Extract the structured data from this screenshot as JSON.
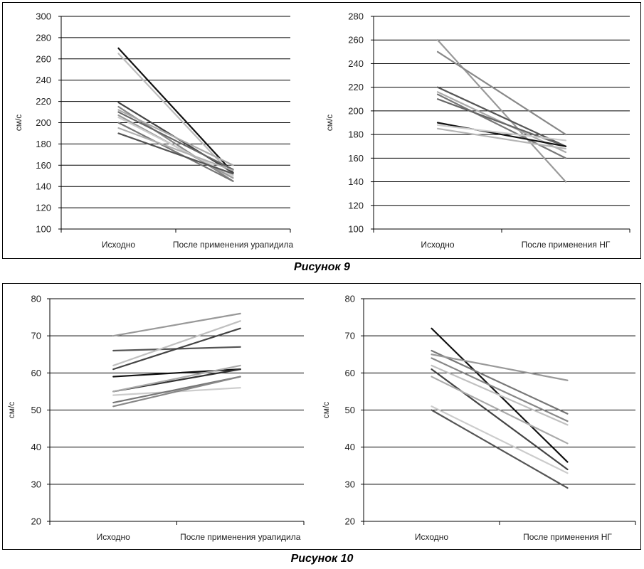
{
  "figures": [
    {
      "caption": "Рисунок 9"
    },
    {
      "caption": "Рисунок 10"
    }
  ],
  "chart_data": [
    {
      "type": "line",
      "title": "",
      "ylabel": "см/с",
      "xlabel": "",
      "categories": [
        "Исходно",
        "После применения урапидила"
      ],
      "ylim": [
        100,
        300
      ],
      "yticks": [
        100,
        120,
        140,
        160,
        180,
        200,
        220,
        240,
        260,
        280,
        300
      ],
      "grid": true,
      "series": [
        {
          "values": [
            270,
            153
          ],
          "color": "#111111"
        },
        {
          "values": [
            265,
            150
          ],
          "color": "#bdbdbd"
        },
        {
          "values": [
            219,
            153
          ],
          "color": "#444444"
        },
        {
          "values": [
            215,
            145
          ],
          "color": "#888888"
        },
        {
          "values": [
            212,
            160
          ],
          "color": "#aaaaaa"
        },
        {
          "values": [
            210,
            156
          ],
          "color": "#666666"
        },
        {
          "values": [
            207,
            148
          ],
          "color": "#999999"
        },
        {
          "values": [
            205,
            150
          ],
          "color": "#cccccc"
        },
        {
          "values": [
            200,
            145
          ],
          "color": "#777777"
        },
        {
          "values": [
            195,
            155
          ],
          "color": "#b0b0b0"
        },
        {
          "values": [
            190,
            152
          ],
          "color": "#555555"
        }
      ]
    },
    {
      "type": "line",
      "title": "",
      "ylabel": "см/с",
      "xlabel": "",
      "categories": [
        "Исходно",
        "После применения НГ"
      ],
      "ylim": [
        100,
        280
      ],
      "yticks": [
        100,
        120,
        140,
        160,
        180,
        200,
        220,
        240,
        260,
        280
      ],
      "grid": true,
      "series": [
        {
          "values": [
            260,
            140
          ],
          "color": "#999999"
        },
        {
          "values": [
            250,
            180
          ],
          "color": "#888888"
        },
        {
          "values": [
            220,
            170
          ],
          "color": "#555555"
        },
        {
          "values": [
            216,
            165
          ],
          "color": "#aaaaaa"
        },
        {
          "values": [
            214,
            160
          ],
          "color": "#777777"
        },
        {
          "values": [
            210,
            170
          ],
          "color": "#666666"
        },
        {
          "values": [
            190,
            170
          ],
          "color": "#111111"
        },
        {
          "values": [
            188,
            175
          ],
          "color": "#cccccc"
        },
        {
          "values": [
            185,
            168
          ],
          "color": "#b5b5b5"
        }
      ]
    },
    {
      "type": "line",
      "title": "",
      "ylabel": "см/с",
      "xlabel": "",
      "categories": [
        "Исходно",
        "После применения урапидила"
      ],
      "ylim": [
        20,
        80
      ],
      "yticks": [
        20,
        30,
        40,
        50,
        60,
        70,
        80
      ],
      "grid": true,
      "series": [
        {
          "values": [
            70,
            76
          ],
          "color": "#999999"
        },
        {
          "values": [
            66,
            67
          ],
          "color": "#555555"
        },
        {
          "values": [
            62,
            74
          ],
          "color": "#c0c0c0"
        },
        {
          "values": [
            61,
            72
          ],
          "color": "#444444"
        },
        {
          "values": [
            59,
            61
          ],
          "color": "#111111"
        },
        {
          "values": [
            55,
            61
          ],
          "color": "#333333"
        },
        {
          "values": [
            55,
            62
          ],
          "color": "#aaaaaa"
        },
        {
          "values": [
            54,
            56
          ],
          "color": "#cccccc"
        },
        {
          "values": [
            52,
            59
          ],
          "color": "#777777"
        },
        {
          "values": [
            51,
            59
          ],
          "color": "#888888"
        }
      ]
    },
    {
      "type": "line",
      "title": "",
      "ylabel": "см/с",
      "xlabel": "",
      "categories": [
        "Исходно",
        "После применения НГ"
      ],
      "ylim": [
        20,
        80
      ],
      "yticks": [
        20,
        30,
        40,
        50,
        60,
        70,
        80
      ],
      "grid": true,
      "series": [
        {
          "values": [
            72,
            36
          ],
          "color": "#111111"
        },
        {
          "values": [
            66,
            49
          ],
          "color": "#777777"
        },
        {
          "values": [
            65,
            58
          ],
          "color": "#999999"
        },
        {
          "values": [
            64,
            47
          ],
          "color": "#888888"
        },
        {
          "values": [
            62,
            46
          ],
          "color": "#c0c0c0"
        },
        {
          "values": [
            61,
            34
          ],
          "color": "#444444"
        },
        {
          "values": [
            59,
            41
          ],
          "color": "#aaaaaa"
        },
        {
          "values": [
            51,
            33
          ],
          "color": "#cccccc"
        },
        {
          "values": [
            50,
            29
          ],
          "color": "#555555"
        }
      ]
    }
  ]
}
